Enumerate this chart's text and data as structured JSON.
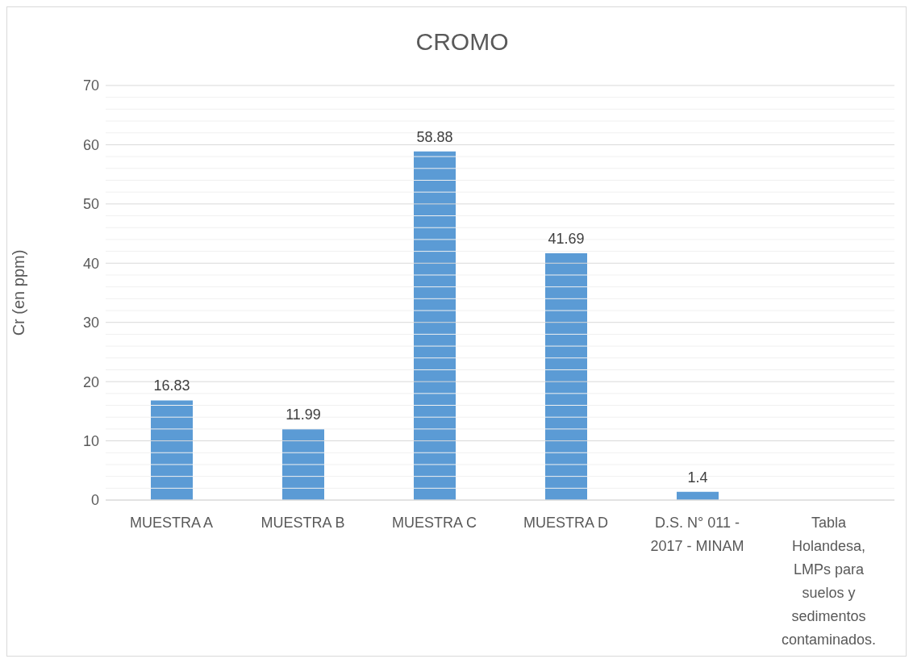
{
  "chart_data": {
    "type": "bar",
    "title": "CROMO",
    "ylabel": "Cr (en ppm)",
    "categories": [
      "MUESTRA A",
      "MUESTRA B",
      "MUESTRA C",
      "MUESTRA D",
      "D.S. N° 011 - 2017 - MINAM",
      "Tabla Holandesa, LMPs para suelos y sedimentos contaminados."
    ],
    "values": [
      16.83,
      11.99,
      58.88,
      41.69,
      1.4,
      null
    ],
    "color": "#5b9bd5",
    "ylim": [
      0,
      70
    ],
    "yticks": [
      0,
      {
        "value": 2,
        "label": null
      },
      {
        "value": 4,
        "label": null
      },
      {
        "value": 6,
        "label": null
      },
      {
        "value": 8,
        "label": null
      },
      10,
      {
        "value": 12,
        "label": null
      },
      {
        "value": 14,
        "label": null
      },
      {
        "value": 16,
        "label": null
      },
      {
        "value": 18,
        "label": null
      },
      20,
      {
        "value": 22,
        "label": null
      },
      {
        "value": 24,
        "label": null
      },
      {
        "value": 26,
        "label": null
      },
      {
        "value": 28,
        "label": null
      },
      30,
      {
        "value": 32,
        "label": null
      },
      {
        "value": 34,
        "label": null
      },
      {
        "value": 36,
        "label": null
      },
      {
        "value": 38,
        "label": null
      },
      40,
      {
        "value": 42,
        "label": null
      },
      {
        "value": 44,
        "label": null
      },
      {
        "value": 46,
        "label": null
      },
      {
        "value": 48,
        "label": null
      },
      50,
      {
        "value": 52,
        "label": null
      },
      {
        "value": 54,
        "label": null
      },
      {
        "value": 56,
        "label": null
      },
      {
        "value": 58,
        "label": null
      },
      60,
      {
        "value": 62,
        "label": null
      },
      {
        "value": 64,
        "label": null
      },
      {
        "value": 66,
        "label": null
      },
      {
        "value": 68,
        "label": null
      },
      70
    ],
    "grid": true,
    "data_labels": true
  }
}
